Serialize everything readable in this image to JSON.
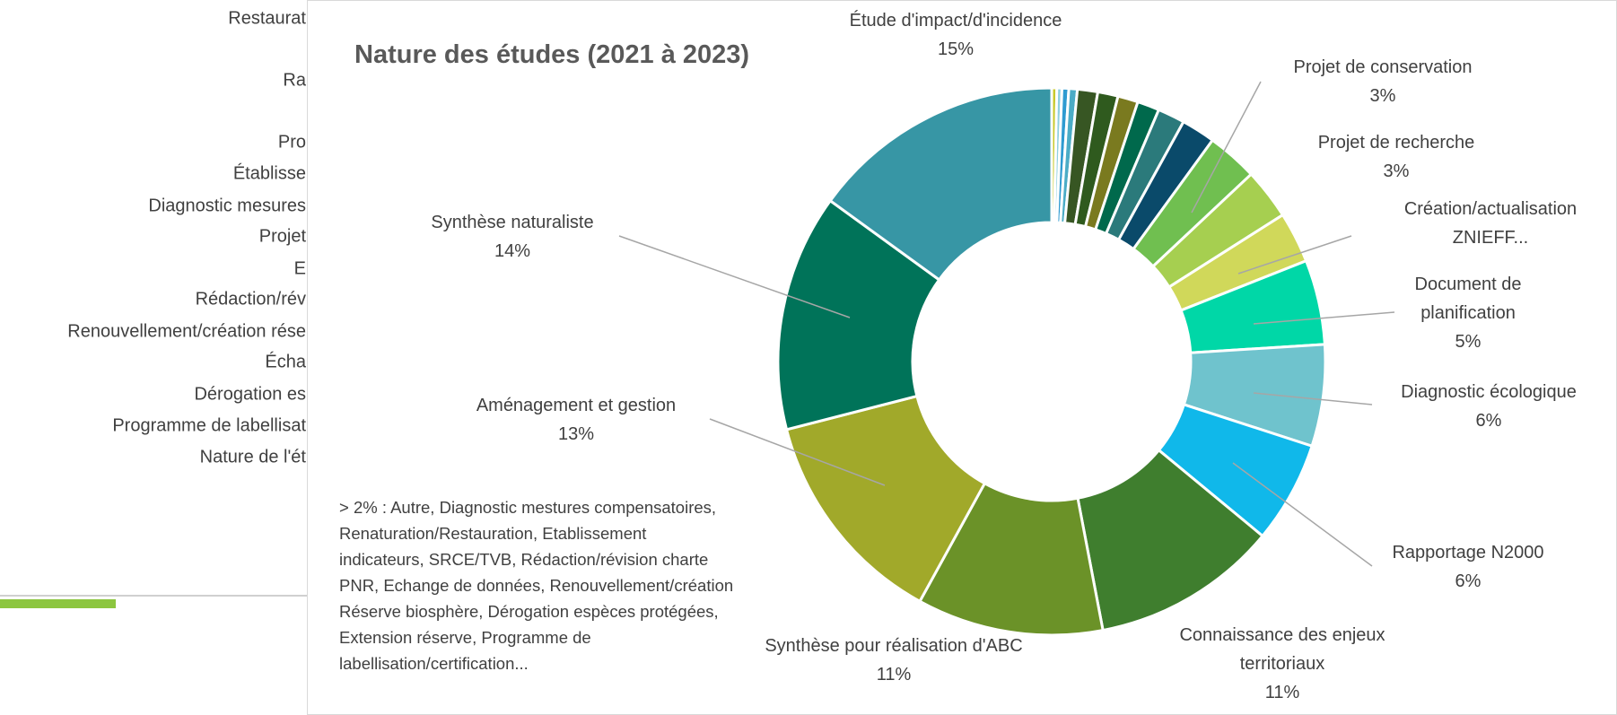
{
  "sheet": {
    "row_labels": [
      "Restaurat",
      "Ra",
      "Pro",
      "Établisse",
      "Diagnostic mesures",
      "Projet",
      "E",
      "Rédaction/rév",
      "Renouvellement/création rése",
      "Écha",
      "Dérogation es",
      "Programme de labellisat",
      "Nature de l'ét"
    ]
  },
  "chart_data": {
    "type": "donut",
    "title": "Nature des études (2021 à 2023)",
    "categories": [
      null,
      null,
      null,
      null,
      null,
      null,
      null,
      null,
      null,
      null,
      "Projet de conservation",
      "Projet de recherche",
      "Création/actualisation ZNIEFF...",
      "Document de planification",
      "Diagnostic écologique",
      "Rapportage N2000",
      "Connaissance des enjeux territoriaux",
      "Synthèse pour réalisation d'ABC",
      "Aménagement et gestion",
      "Synthèse naturaliste",
      "Étude d'impact/d'incidence"
    ],
    "values": [
      0.3,
      0.3,
      0.4,
      0.5,
      1.2,
      1.2,
      1.2,
      1.3,
      1.6,
      2.0,
      3,
      3,
      3,
      5,
      6,
      6,
      11,
      11,
      13,
      14,
      15
    ],
    "value_labels": [
      null,
      null,
      null,
      null,
      null,
      null,
      null,
      null,
      null,
      null,
      "3%",
      "3%",
      null,
      "5%",
      "6%",
      "6%",
      "11%",
      "11%",
      "13%",
      "14%",
      "15%"
    ],
    "colors": [
      "#c9c92c",
      "#8fd0e0",
      "#2e9bd1",
      "#4bacc6",
      "#375623",
      "#2f5a1e",
      "#7a7a1f",
      "#00694c",
      "#2b7a7b",
      "#0a4a6a",
      "#70bf50",
      "#a6cf50",
      "#d0d85a",
      "#00d7a7",
      "#6fc3cd",
      "#10b8ea",
      "#3f7e2e",
      "#6b9228",
      "#a1a92a",
      "#007359",
      "#3796a5"
    ],
    "note": "> 2% : Autre, Diagnostic mestures compensatoires, Renaturation/Restauration, Etablissement indicateurs, SRCE/TVB, Rédaction/révision charte PNR, Echange de données, Renouvellement/création  Réserve biosphère, Dérogation espèces protégées, Extension réserve, Programme de labellisation/certification..."
  }
}
